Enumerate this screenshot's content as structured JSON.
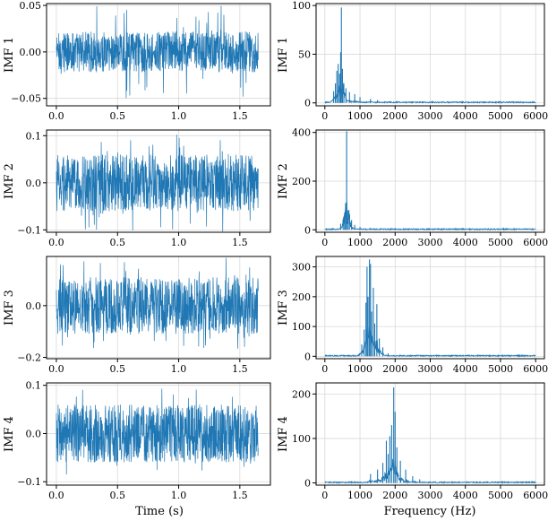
{
  "figure": {
    "xlabel_time": "Time (s)",
    "xlabel_freq": "Frequency (Hz)",
    "line_color": "#1f77b4"
  },
  "chart_data": [
    {
      "type": "line",
      "panel": "time",
      "ylabel": "IMF 1",
      "xlim": [
        -0.08,
        1.75
      ],
      "ylim": [
        -0.058,
        0.052
      ],
      "xticks": [
        0.0,
        0.5,
        1.0,
        1.5
      ],
      "xtick_labels": [
        "0.0",
        "0.5",
        "1.0",
        "1.5"
      ],
      "yticks": [
        0.05,
        0.0,
        -0.05
      ],
      "ytick_labels": [
        "0.05",
        "0.00",
        "−0.05"
      ],
      "grid": true,
      "series": [
        {
          "x_range": [
            0.0,
            1.65
          ],
          "amplitude_typical": 0.022,
          "amplitude_peak": 0.052
        }
      ]
    },
    {
      "type": "line",
      "panel": "spectrum",
      "ylabel": "IMF 1",
      "xlim": [
        -250,
        6250
      ],
      "ylim": [
        -3,
        102
      ],
      "xticks": [
        0,
        1000,
        2000,
        3000,
        4000,
        5000,
        6000
      ],
      "xtick_labels": [
        "0",
        "1000",
        "2000",
        "3000",
        "4000",
        "5000",
        "6000"
      ],
      "yticks": [
        0,
        50,
        100
      ],
      "ytick_labels": [
        "0",
        "50",
        "100"
      ],
      "grid": true,
      "peaks": [
        {
          "x": 250,
          "y": 12
        },
        {
          "x": 300,
          "y": 20
        },
        {
          "x": 340,
          "y": 33
        },
        {
          "x": 380,
          "y": 40
        },
        {
          "x": 420,
          "y": 30
        },
        {
          "x": 450,
          "y": 52
        },
        {
          "x": 470,
          "y": 98
        },
        {
          "x": 500,
          "y": 35
        },
        {
          "x": 540,
          "y": 20
        },
        {
          "x": 600,
          "y": 15
        },
        {
          "x": 700,
          "y": 11
        },
        {
          "x": 850,
          "y": 9
        },
        {
          "x": 1000,
          "y": 6
        },
        {
          "x": 1300,
          "y": 4
        },
        {
          "x": 1500,
          "y": 3
        }
      ]
    },
    {
      "type": "line",
      "panel": "time",
      "ylabel": "IMF 2",
      "xlim": [
        -0.08,
        1.75
      ],
      "ylim": [
        -0.105,
        0.112
      ],
      "xticks": [
        0.0,
        0.5,
        1.0,
        1.5
      ],
      "xtick_labels": [
        "0.0",
        "0.5",
        "1.0",
        "1.5"
      ],
      "yticks": [
        0.1,
        0.0,
        -0.1
      ],
      "ytick_labels": [
        "0.1",
        "0.0",
        "−0.1"
      ],
      "grid": true,
      "series": [
        {
          "x_range": [
            0.0,
            1.65
          ],
          "amplitude_typical": 0.06,
          "amplitude_peak": 0.105
        }
      ]
    },
    {
      "type": "line",
      "panel": "spectrum",
      "ylabel": "IMF 2",
      "xlim": [
        -250,
        6250
      ],
      "ylim": [
        -10,
        410
      ],
      "xticks": [
        0,
        1000,
        2000,
        3000,
        4000,
        5000,
        6000
      ],
      "xtick_labels": [
        "0",
        "1000",
        "2000",
        "3000",
        "4000",
        "5000",
        "6000"
      ],
      "yticks": [
        0,
        200,
        400
      ],
      "ytick_labels": [
        "0",
        "200",
        "400"
      ],
      "grid": true,
      "peaks": [
        {
          "x": 450,
          "y": 25
        },
        {
          "x": 520,
          "y": 45
        },
        {
          "x": 560,
          "y": 70
        },
        {
          "x": 590,
          "y": 110
        },
        {
          "x": 620,
          "y": 405
        },
        {
          "x": 660,
          "y": 80
        },
        {
          "x": 700,
          "y": 60
        },
        {
          "x": 760,
          "y": 40
        },
        {
          "x": 850,
          "y": 20
        },
        {
          "x": 1000,
          "y": 12
        },
        {
          "x": 1300,
          "y": 8
        },
        {
          "x": 1600,
          "y": 5
        }
      ]
    },
    {
      "type": "line",
      "panel": "time",
      "ylabel": "IMF 3",
      "xlim": [
        -0.08,
        1.75
      ],
      "ylim": [
        -0.205,
        0.19
      ],
      "xticks": [
        0.0,
        0.5,
        1.0,
        1.5
      ],
      "xtick_labels": [
        "0.0",
        "0.5",
        "1.0",
        "1.5"
      ],
      "yticks": [
        0.0,
        -0.2
      ],
      "ytick_labels": [
        "0.0",
        "−0.2"
      ],
      "grid": true,
      "series": [
        {
          "x_range": [
            0.0,
            1.65
          ],
          "amplitude_typical": 0.11,
          "amplitude_peak": 0.185
        }
      ]
    },
    {
      "type": "line",
      "panel": "spectrum",
      "ylabel": "IMF 3",
      "xlim": [
        -250,
        6250
      ],
      "ylim": [
        -8,
        335
      ],
      "xticks": [
        0,
        1000,
        2000,
        3000,
        4000,
        5000,
        6000
      ],
      "xtick_labels": [
        "0",
        "1000",
        "2000",
        "3000",
        "4000",
        "5000",
        "6000"
      ],
      "yticks": [
        0,
        100,
        200,
        300
      ],
      "ytick_labels": [
        "0",
        "100",
        "200",
        "300"
      ],
      "grid": true,
      "peaks": [
        {
          "x": 1050,
          "y": 40
        },
        {
          "x": 1120,
          "y": 90
        },
        {
          "x": 1170,
          "y": 180
        },
        {
          "x": 1200,
          "y": 300
        },
        {
          "x": 1230,
          "y": 200
        },
        {
          "x": 1270,
          "y": 325
        },
        {
          "x": 1300,
          "y": 310
        },
        {
          "x": 1330,
          "y": 150
        },
        {
          "x": 1380,
          "y": 230
        },
        {
          "x": 1420,
          "y": 110
        },
        {
          "x": 1480,
          "y": 175
        },
        {
          "x": 1550,
          "y": 60
        },
        {
          "x": 1650,
          "y": 30
        },
        {
          "x": 1800,
          "y": 10
        }
      ]
    },
    {
      "type": "line",
      "panel": "time",
      "ylabel": "IMF 4",
      "xlim": [
        -0.08,
        1.75
      ],
      "ylim": [
        -0.107,
        0.105
      ],
      "xticks": [
        0.0,
        0.5,
        1.0,
        1.5
      ],
      "xtick_labels": [
        "0.0",
        "0.5",
        "1.0",
        "1.5"
      ],
      "yticks": [
        0.1,
        0.0,
        -0.1
      ],
      "ytick_labels": [
        "0.1",
        "0.0",
        "−0.1"
      ],
      "grid": true,
      "series": [
        {
          "x_range": [
            0.0,
            1.65
          ],
          "amplitude_typical": 0.06,
          "amplitude_peak": 0.095
        }
      ]
    },
    {
      "type": "line",
      "panel": "spectrum",
      "ylabel": "IMF 4",
      "xlim": [
        -250,
        6250
      ],
      "ylim": [
        -5,
        225
      ],
      "xticks": [
        0,
        1000,
        2000,
        3000,
        4000,
        5000,
        6000
      ],
      "xtick_labels": [
        "0",
        "1000",
        "2000",
        "3000",
        "4000",
        "5000",
        "6000"
      ],
      "yticks": [
        0,
        100,
        200
      ],
      "ytick_labels": [
        "0",
        "100",
        "200"
      ],
      "grid": true,
      "peaks": [
        {
          "x": 1300,
          "y": 20
        },
        {
          "x": 1500,
          "y": 30
        },
        {
          "x": 1650,
          "y": 45
        },
        {
          "x": 1750,
          "y": 95
        },
        {
          "x": 1800,
          "y": 65
        },
        {
          "x": 1850,
          "y": 105
        },
        {
          "x": 1900,
          "y": 130
        },
        {
          "x": 1960,
          "y": 215
        },
        {
          "x": 2000,
          "y": 160
        },
        {
          "x": 2050,
          "y": 80
        },
        {
          "x": 2150,
          "y": 50
        },
        {
          "x": 2300,
          "y": 30
        },
        {
          "x": 2500,
          "y": 15
        },
        {
          "x": 2700,
          "y": 8
        }
      ]
    }
  ]
}
